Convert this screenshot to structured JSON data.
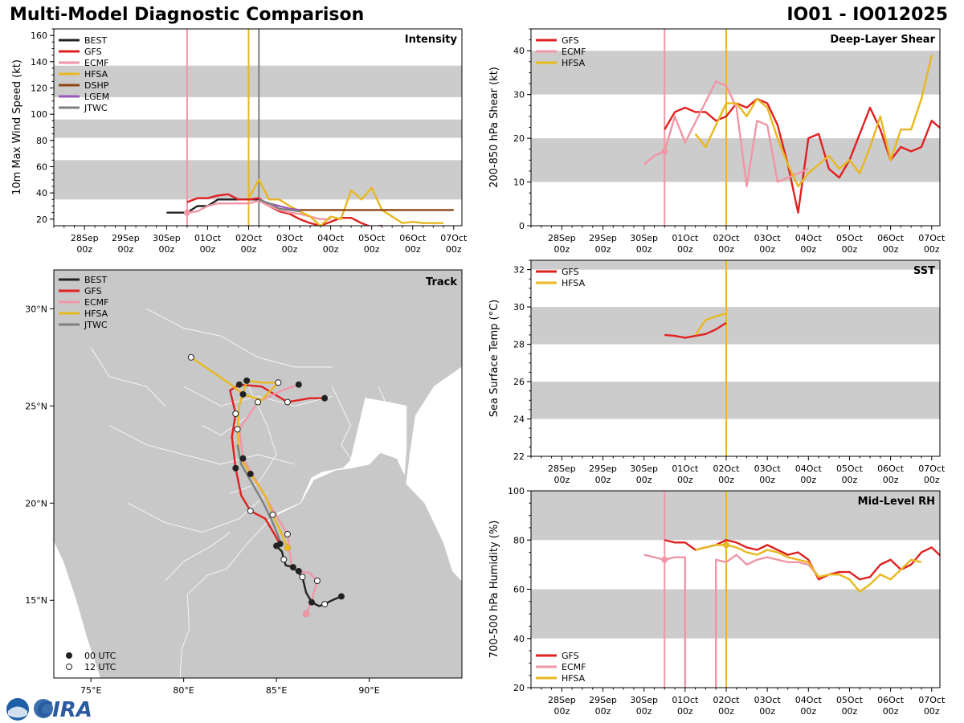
{
  "header": {
    "title": "Multi-Model Diagnostic Comparison",
    "storm_id": "IO01 - IO012025"
  },
  "x_ticks": [
    "28Sep\n00z",
    "29Sep\n00z",
    "30Sep\n00z",
    "01Oct\n00z",
    "02Oct\n00z",
    "03Oct\n00z",
    "04Oct\n00z",
    "05Oct\n00z",
    "06Oct\n00z",
    "07Oct\n00z"
  ],
  "colors": {
    "BEST": "#222222",
    "GFS": "#e02020",
    "ECMF": "#f096a6",
    "HFSA": "#e8b820",
    "DSHP": "#8b4513",
    "LGEM": "#9b59b6",
    "JTWC": "#808080",
    "band": "#cccccc",
    "land": "#c8c8c8"
  },
  "chart_data": [
    {
      "type": "line",
      "title": "Intensity",
      "ylabel": "10m Max Wind Speed (kt)",
      "ylim": [
        15,
        165
      ],
      "yticks": [
        20,
        40,
        60,
        80,
        100,
        120,
        140,
        160
      ],
      "bands": [
        [
          35,
          65
        ],
        [
          82,
          96
        ],
        [
          113,
          137
        ]
      ],
      "legend": [
        "BEST",
        "GFS",
        "ECMF",
        "HFSA",
        "DSHP",
        "LGEM",
        "JTWC"
      ],
      "vlines": [
        {
          "x": 2.5,
          "model": "ECMF"
        },
        {
          "x": 4.0,
          "model": "HFSA"
        },
        {
          "x": 4.25,
          "model": "JTWC"
        }
      ],
      "series": [
        {
          "name": "BEST",
          "x": [
            2.0,
            2.25,
            2.5,
            2.75,
            3.0,
            3.25,
            3.5,
            3.75,
            4.0,
            4.25
          ],
          "y": [
            25,
            25,
            25,
            30,
            30,
            35,
            35,
            35,
            35,
            35
          ]
        },
        {
          "name": "GFS",
          "x": [
            2.5,
            2.75,
            3.0,
            3.25,
            3.5,
            3.75,
            4.0,
            4.25,
            4.5,
            4.75,
            5.0,
            5.25,
            5.5,
            5.75,
            6.0,
            6.25,
            6.5,
            6.75,
            7.0,
            7.25
          ],
          "y": [
            33,
            36,
            36,
            38,
            39,
            35,
            35,
            36,
            30,
            26,
            24,
            20,
            17,
            15,
            18,
            21,
            21,
            17,
            14,
            15
          ]
        },
        {
          "name": "ECMF",
          "x": [
            2.5,
            2.75,
            3.0,
            3.25,
            3.5,
            3.75,
            4.0,
            4.25,
            4.5,
            4.75,
            5.0,
            5.25,
            5.5,
            5.75,
            6.0
          ],
          "y": [
            25,
            26,
            30,
            32,
            32,
            32,
            32,
            34,
            30,
            27,
            25,
            24,
            22,
            20,
            20
          ]
        },
        {
          "name": "HFSA",
          "x": [
            4.0,
            4.25,
            4.5,
            4.75,
            5.0,
            5.25,
            5.5,
            5.75,
            6.0,
            6.25,
            6.5,
            6.75,
            7.0,
            7.25,
            7.5,
            7.75,
            8.0,
            8.25,
            8.5,
            8.75
          ],
          "y": [
            36,
            50,
            35,
            35,
            30,
            26,
            22,
            15,
            22,
            20,
            42,
            35,
            44,
            27,
            22,
            17,
            18,
            17,
            17,
            17
          ]
        },
        {
          "name": "DSHP",
          "x": [
            5.0,
            9.0
          ],
          "y": [
            27,
            27
          ]
        },
        {
          "name": "LGEM",
          "x": [
            4.25,
            4.5,
            4.75,
            5.0,
            5.25
          ],
          "y": [
            35,
            32,
            30,
            28,
            27
          ]
        },
        {
          "name": "JTWC",
          "x": [
            4.25,
            4.5,
            4.75,
            5.0,
            5.25
          ],
          "y": [
            35,
            32,
            28,
            27,
            26
          ]
        }
      ]
    },
    {
      "type": "line",
      "title": "Deep-Layer Shear",
      "ylabel": "200-850 hPa Shear (kt)",
      "ylim": [
        0,
        45
      ],
      "yticks": [
        0,
        10,
        20,
        30,
        40
      ],
      "bands": [
        [
          10,
          20
        ],
        [
          30,
          40
        ]
      ],
      "legend": [
        "GFS",
        "ECMF",
        "HFSA"
      ],
      "vlines": [
        {
          "x": 2.5,
          "model": "ECMF"
        },
        {
          "x": 4.0,
          "model": "HFSA"
        }
      ],
      "series": [
        {
          "name": "GFS",
          "x": [
            2.5,
            2.75,
            3.0,
            3.25,
            3.5,
            3.75,
            4.0,
            4.25,
            4.5,
            4.75,
            5.0,
            5.25,
            5.5,
            5.75,
            6.0,
            6.25,
            6.5,
            6.75,
            7.0,
            7.25,
            7.5,
            7.75,
            8.0,
            8.25,
            8.5,
            8.75,
            9.0,
            9.25
          ],
          "y": [
            22,
            26,
            27,
            26,
            26,
            24,
            25,
            28,
            27,
            29,
            28,
            23,
            14,
            3,
            20,
            21,
            13,
            11,
            15,
            21,
            27,
            22,
            15,
            18,
            17,
            18,
            24,
            22
          ]
        },
        {
          "name": "ECMF",
          "x": [
            2.0,
            2.25,
            2.5,
            2.75,
            3.0,
            3.75,
            4.0,
            4.25,
            4.5,
            4.75,
            5.0,
            5.25,
            5.5,
            5.75,
            6.0
          ],
          "y": [
            14,
            16,
            17,
            25,
            19,
            33,
            32,
            27,
            9,
            24,
            23,
            10,
            11,
            12,
            13
          ]
        },
        {
          "name": "HFSA",
          "x": [
            3.25,
            3.5,
            3.75,
            4.0,
            4.25,
            4.5,
            4.75,
            5.0,
            5.25,
            5.5,
            5.75,
            6.0,
            6.25,
            6.5,
            6.75,
            7.0,
            7.25,
            7.5,
            7.75,
            8.0,
            8.25,
            8.5,
            8.75
          ],
          "y": [
            21,
            18,
            23,
            28,
            28,
            25,
            29,
            27,
            20,
            14,
            9,
            12,
            14,
            16,
            13,
            15,
            12,
            18,
            25,
            15,
            22,
            22,
            29
          ]
        },
        {
          "name": "HFSA",
          "x": [
            8.75,
            9.0
          ],
          "y": [
            29,
            39
          ]
        }
      ]
    },
    {
      "type": "map",
      "title": "Track",
      "lon_ticks": [
        "75°E",
        "80°E",
        "85°E",
        "90°E"
      ],
      "lat_ticks": [
        "15°N",
        "20°N",
        "25°N",
        "30°N"
      ],
      "lon_range": [
        73,
        95
      ],
      "lat_range": [
        11,
        32
      ],
      "legend": [
        "BEST",
        "GFS",
        "ECMF",
        "HFSA",
        "JTWC"
      ],
      "marker_legend": [
        "00 UTC",
        "12 UTC"
      ],
      "tracks": [
        {
          "name": "BEST",
          "lon": [
            88.5,
            88.0,
            87.6,
            87.3,
            86.9,
            86.6,
            86.4,
            86.1,
            85.9,
            85.5,
            85.4,
            85.3,
            85.0
          ],
          "lat": [
            15.2,
            15.0,
            14.8,
            14.7,
            14.9,
            15.4,
            16.2,
            16.5,
            16.7,
            16.8,
            17.1,
            17.5,
            17.8
          ]
        },
        {
          "name": "GFS",
          "lon": [
            85.2,
            84.4,
            83.6,
            83.1,
            82.8,
            82.6,
            82.8,
            82.5,
            83.0,
            84.2,
            85.6,
            86.8,
            87.6
          ],
          "lat": [
            17.9,
            19.2,
            19.6,
            20.4,
            21.8,
            23.4,
            24.6,
            25.8,
            26.1,
            26.0,
            25.2,
            25.4,
            25.4
          ]
        },
        {
          "name": "ECMF",
          "lon": [
            86.6,
            86.9,
            87.2,
            86.8,
            86.2,
            85.8,
            85.6,
            84.6,
            83.2,
            83.0,
            84.0,
            85.3,
            86.2
          ],
          "lat": [
            14.3,
            15.0,
            16.0,
            16.4,
            16.5,
            16.8,
            18.4,
            20.0,
            22.3,
            23.8,
            25.2,
            25.8,
            26.1
          ]
        },
        {
          "name": "HFSA",
          "lon": [
            85.6,
            85.2,
            84.8,
            84.4,
            83.6,
            83.0,
            82.9,
            83.0,
            83.4,
            84.3,
            85.1,
            84.2,
            83.2,
            82.4,
            80.4
          ],
          "lat": [
            17.7,
            18.6,
            19.4,
            20.4,
            21.5,
            22.4,
            23.8,
            25.0,
            26.3,
            26.2,
            26.2,
            25.3,
            25.6,
            26.2,
            27.5
          ]
        },
        {
          "name": "JTWC",
          "lon": [
            85.3,
            84.8,
            84.3,
            83.7,
            83.1,
            82.9
          ],
          "lat": [
            17.8,
            19.0,
            20.0,
            21.0,
            22.0,
            23.0
          ]
        }
      ]
    },
    {
      "type": "line",
      "title": "SST",
      "ylabel": "Sea Surface Temp (°C)",
      "ylim": [
        22,
        32.5
      ],
      "yticks": [
        22,
        24,
        26,
        28,
        30,
        32
      ],
      "bands": [
        [
          24,
          26
        ],
        [
          28,
          30
        ],
        [
          32,
          32.5
        ]
      ],
      "legend": [
        "GFS",
        "HFSA"
      ],
      "vlines": [
        {
          "x": 4.0,
          "model": "HFSA"
        }
      ],
      "series": [
        {
          "name": "GFS",
          "x": [
            2.5,
            2.75,
            3.0,
            3.25,
            3.5,
            3.75,
            4.0
          ],
          "y": [
            28.5,
            28.45,
            28.35,
            28.45,
            28.55,
            28.8,
            29.15
          ]
        },
        {
          "name": "HFSA",
          "x": [
            3.25,
            3.5,
            3.75,
            4.0
          ],
          "y": [
            28.5,
            29.3,
            29.5,
            29.65
          ]
        }
      ]
    },
    {
      "type": "line",
      "title": "Mid-Level RH",
      "ylabel": "700-500 hPa Humidity (%)",
      "ylim": [
        20,
        100
      ],
      "yticks": [
        20,
        40,
        60,
        80,
        100
      ],
      "bands": [
        [
          40,
          60
        ],
        [
          80,
          100
        ]
      ],
      "legend": [
        "GFS",
        "ECMF",
        "HFSA"
      ],
      "vlines": [
        {
          "x": 2.5,
          "model": "ECMF"
        },
        {
          "x": 4.0,
          "model": "HFSA"
        }
      ],
      "series": [
        {
          "name": "GFS",
          "x": [
            2.5,
            2.75,
            3.0,
            3.25,
            3.5,
            3.75,
            4.0,
            4.25,
            4.5,
            4.75,
            5.0,
            5.25,
            5.5,
            5.75,
            6.0,
            6.25,
            6.5,
            6.75,
            7.0,
            7.25,
            7.5,
            7.75,
            8.0,
            8.25,
            8.5,
            8.75,
            9.0,
            9.25
          ],
          "y": [
            80,
            79,
            79,
            76,
            77,
            78,
            80,
            79,
            77,
            76,
            78,
            76,
            74,
            75,
            72,
            64,
            66,
            67,
            67,
            64,
            65,
            70,
            72,
            68,
            70,
            75,
            77,
            73
          ]
        },
        {
          "name": "ECMF",
          "x": [
            2.0,
            2.25,
            2.5,
            2.75,
            3.0,
            3.0
          ],
          "y": [
            74,
            73,
            72,
            73,
            73,
            20
          ]
        },
        {
          "name": "ECMF",
          "x": [
            3.75,
            3.75,
            4.0,
            4.25,
            4.5,
            4.75,
            5.0,
            5.25,
            5.5,
            5.75,
            6.0,
            6.25
          ],
          "y": [
            20,
            72,
            71,
            74,
            70,
            72,
            73,
            72,
            71,
            71,
            70,
            65
          ]
        },
        {
          "name": "HFSA",
          "x": [
            3.25,
            3.5,
            3.75,
            4.0,
            4.25,
            4.5,
            4.75,
            5.0,
            5.25,
            5.5,
            5.75,
            6.0,
            6.25,
            6.5,
            6.75,
            7.0,
            7.25,
            7.5,
            7.75,
            8.0,
            8.25,
            8.5,
            8.75
          ],
          "y": [
            76,
            77,
            78,
            78,
            77,
            75,
            74,
            76,
            75,
            73,
            72,
            71,
            65,
            66,
            66,
            64,
            59,
            62,
            66,
            64,
            68,
            72,
            71
          ]
        }
      ]
    }
  ],
  "logo": {
    "text": "CIRA"
  }
}
